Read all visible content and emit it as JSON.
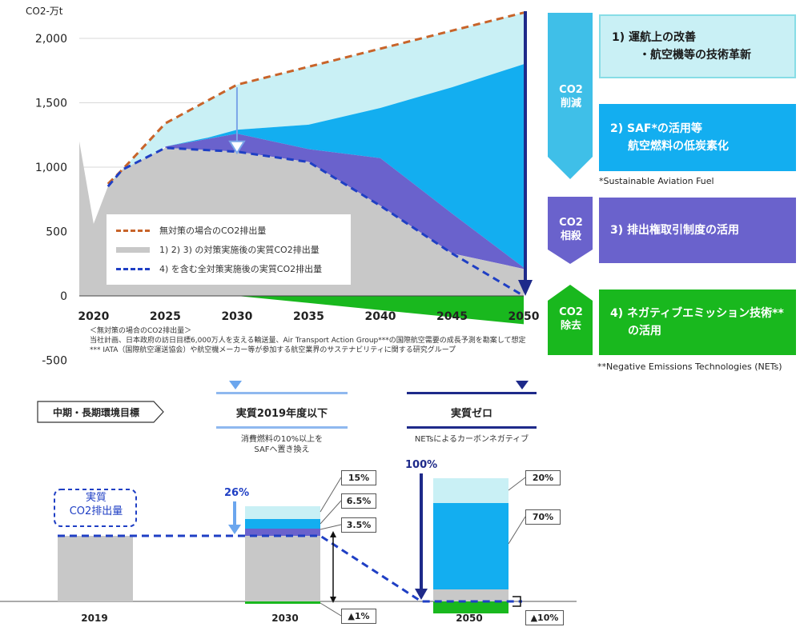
{
  "chart_data": [
    {
      "type": "area",
      "ylabel": "CO2-万t",
      "ylim": [
        -500,
        2200
      ],
      "xlim": [
        2019,
        2050
      ],
      "x_ticks": [
        2020,
        2025,
        2030,
        2035,
        2040,
        2045,
        2050
      ],
      "y_ticks": [
        -500,
        0,
        500,
        1000,
        1500,
        2000
      ],
      "y_tick_labels": [
        "-500",
        "0",
        "500",
        "1,000",
        "1,500",
        "2,000"
      ],
      "series": [
        {
          "name": "無対策の場合のCO2排出量",
          "style": "dashed",
          "color": "#c8642a",
          "x": [
            2021,
            2022,
            2025,
            2030,
            2035,
            2040,
            2045,
            2050
          ],
          "values": [
            870,
            980,
            1340,
            1640,
            1780,
            1920,
            2060,
            2200
          ]
        },
        {
          "name": "1) 2) 3) の対策実施後の実質CO2排出量",
          "style": "solid-thick",
          "color": "#c8c8c8",
          "x": [
            2019,
            2020,
            2021,
            2022,
            2025,
            2030,
            2035,
            2040,
            2045,
            2050
          ],
          "values": [
            1200,
            560,
            850,
            980,
            1160,
            1260,
            1140,
            1070,
            640,
            220
          ]
        },
        {
          "name": "4) を含む全対策実施後の実質CO2排出量",
          "style": "dashed",
          "color": "#1f3fc4",
          "x": [
            2021,
            2022,
            2025,
            2030,
            2035,
            2040,
            2045,
            2050
          ],
          "values": [
            850,
            980,
            1150,
            1120,
            1040,
            700,
            330,
            0
          ]
        }
      ],
      "bands": [
        {
          "name": "1)",
          "color": "#c9f0f5"
        },
        {
          "name": "2)",
          "color": "#13aef0"
        },
        {
          "name": "3)",
          "color": "#6a62cc"
        },
        {
          "name": "4)",
          "color": "#19b81e"
        }
      ],
      "annotations": [
        "＜無対策の場合のCO2排出量＞",
        "当社計画、日本政府の訪日目標6,000万人を支える輸送量、Air Transport Action Group***の国際航空需要の成長予測を勘案して想定",
        "*** IATA（国際航空運送協会）や航空機メーカー等が参加する航空業界のサステナビリティに関する研究グループ"
      ]
    },
    {
      "type": "bar",
      "categories": [
        "2019",
        "2030",
        "2050"
      ],
      "series": [
        {
          "name": "実質 CO2排出量",
          "values": [
            100,
            74,
            0
          ]
        },
        {
          "name": "1)",
          "values": [
            0,
            15,
            20
          ]
        },
        {
          "name": "2)",
          "values": [
            0,
            6.5,
            70
          ]
        },
        {
          "name": "3)",
          "values": [
            0,
            3.5,
            0
          ]
        },
        {
          "name": "4)",
          "values": [
            0,
            -1,
            -10
          ]
        }
      ],
      "annotations": [
        "26%",
        "100%",
        "15%",
        "6.5%",
        "3.5%",
        "▲1%",
        "20%",
        "70%",
        "▲10%"
      ]
    }
  ],
  "measures": {
    "m1": {
      "label_a": "1)  運航上の改善",
      "label_b": "・航空機等の技術革新"
    },
    "m2": {
      "label_a": "2) SAF*の活用等",
      "label_b": "航空燃料の低炭素化"
    },
    "m3": {
      "label_a": "3) 排出権取引制度の活用"
    },
    "m4": {
      "label_a": "4) ネガティブエミッション技術**",
      "label_b": "の活用"
    }
  },
  "categories": {
    "reduce": {
      "a": "CO2",
      "b": "削減"
    },
    "offset": {
      "a": "CO2",
      "b": "相殺"
    },
    "remove": {
      "a": "CO2",
      "b": "除去"
    }
  },
  "footnotes": {
    "saf": "*Sustainable Aviation Fuel",
    "nets": "**Negative Emissions Technologies (NETs)"
  },
  "targets": {
    "label": "中期・長期環境目標",
    "mid_title": "実質2019年度以下",
    "mid_sub_1": "消費燃料の10%以上を",
    "mid_sub_2": "SAFへ置き換え",
    "long_title": "実質ゼロ",
    "long_sub": "NETsによるカーボンネガティブ"
  },
  "bottom": {
    "box_label_1": "実質",
    "box_label_2": "CO2排出量",
    "pct_26": "26%",
    "pct_100": "100%",
    "b30_1": "15%",
    "b30_2": "6.5%",
    "b30_3": "3.5%",
    "b30_4": "▲1%",
    "b50_1": "20%",
    "b50_2": "70%",
    "b50_3": "▲10%",
    "years": [
      "2019",
      "2030",
      "2050"
    ]
  },
  "colors": {
    "light": "#c9f0f5",
    "saf": "#13aef0",
    "purple": "#6a62cc",
    "green": "#19b81e",
    "gray": "#c8c8c8",
    "navy": "#1f3fc4",
    "orange": "#c8642a",
    "darknavy": "#1e2a8a"
  }
}
